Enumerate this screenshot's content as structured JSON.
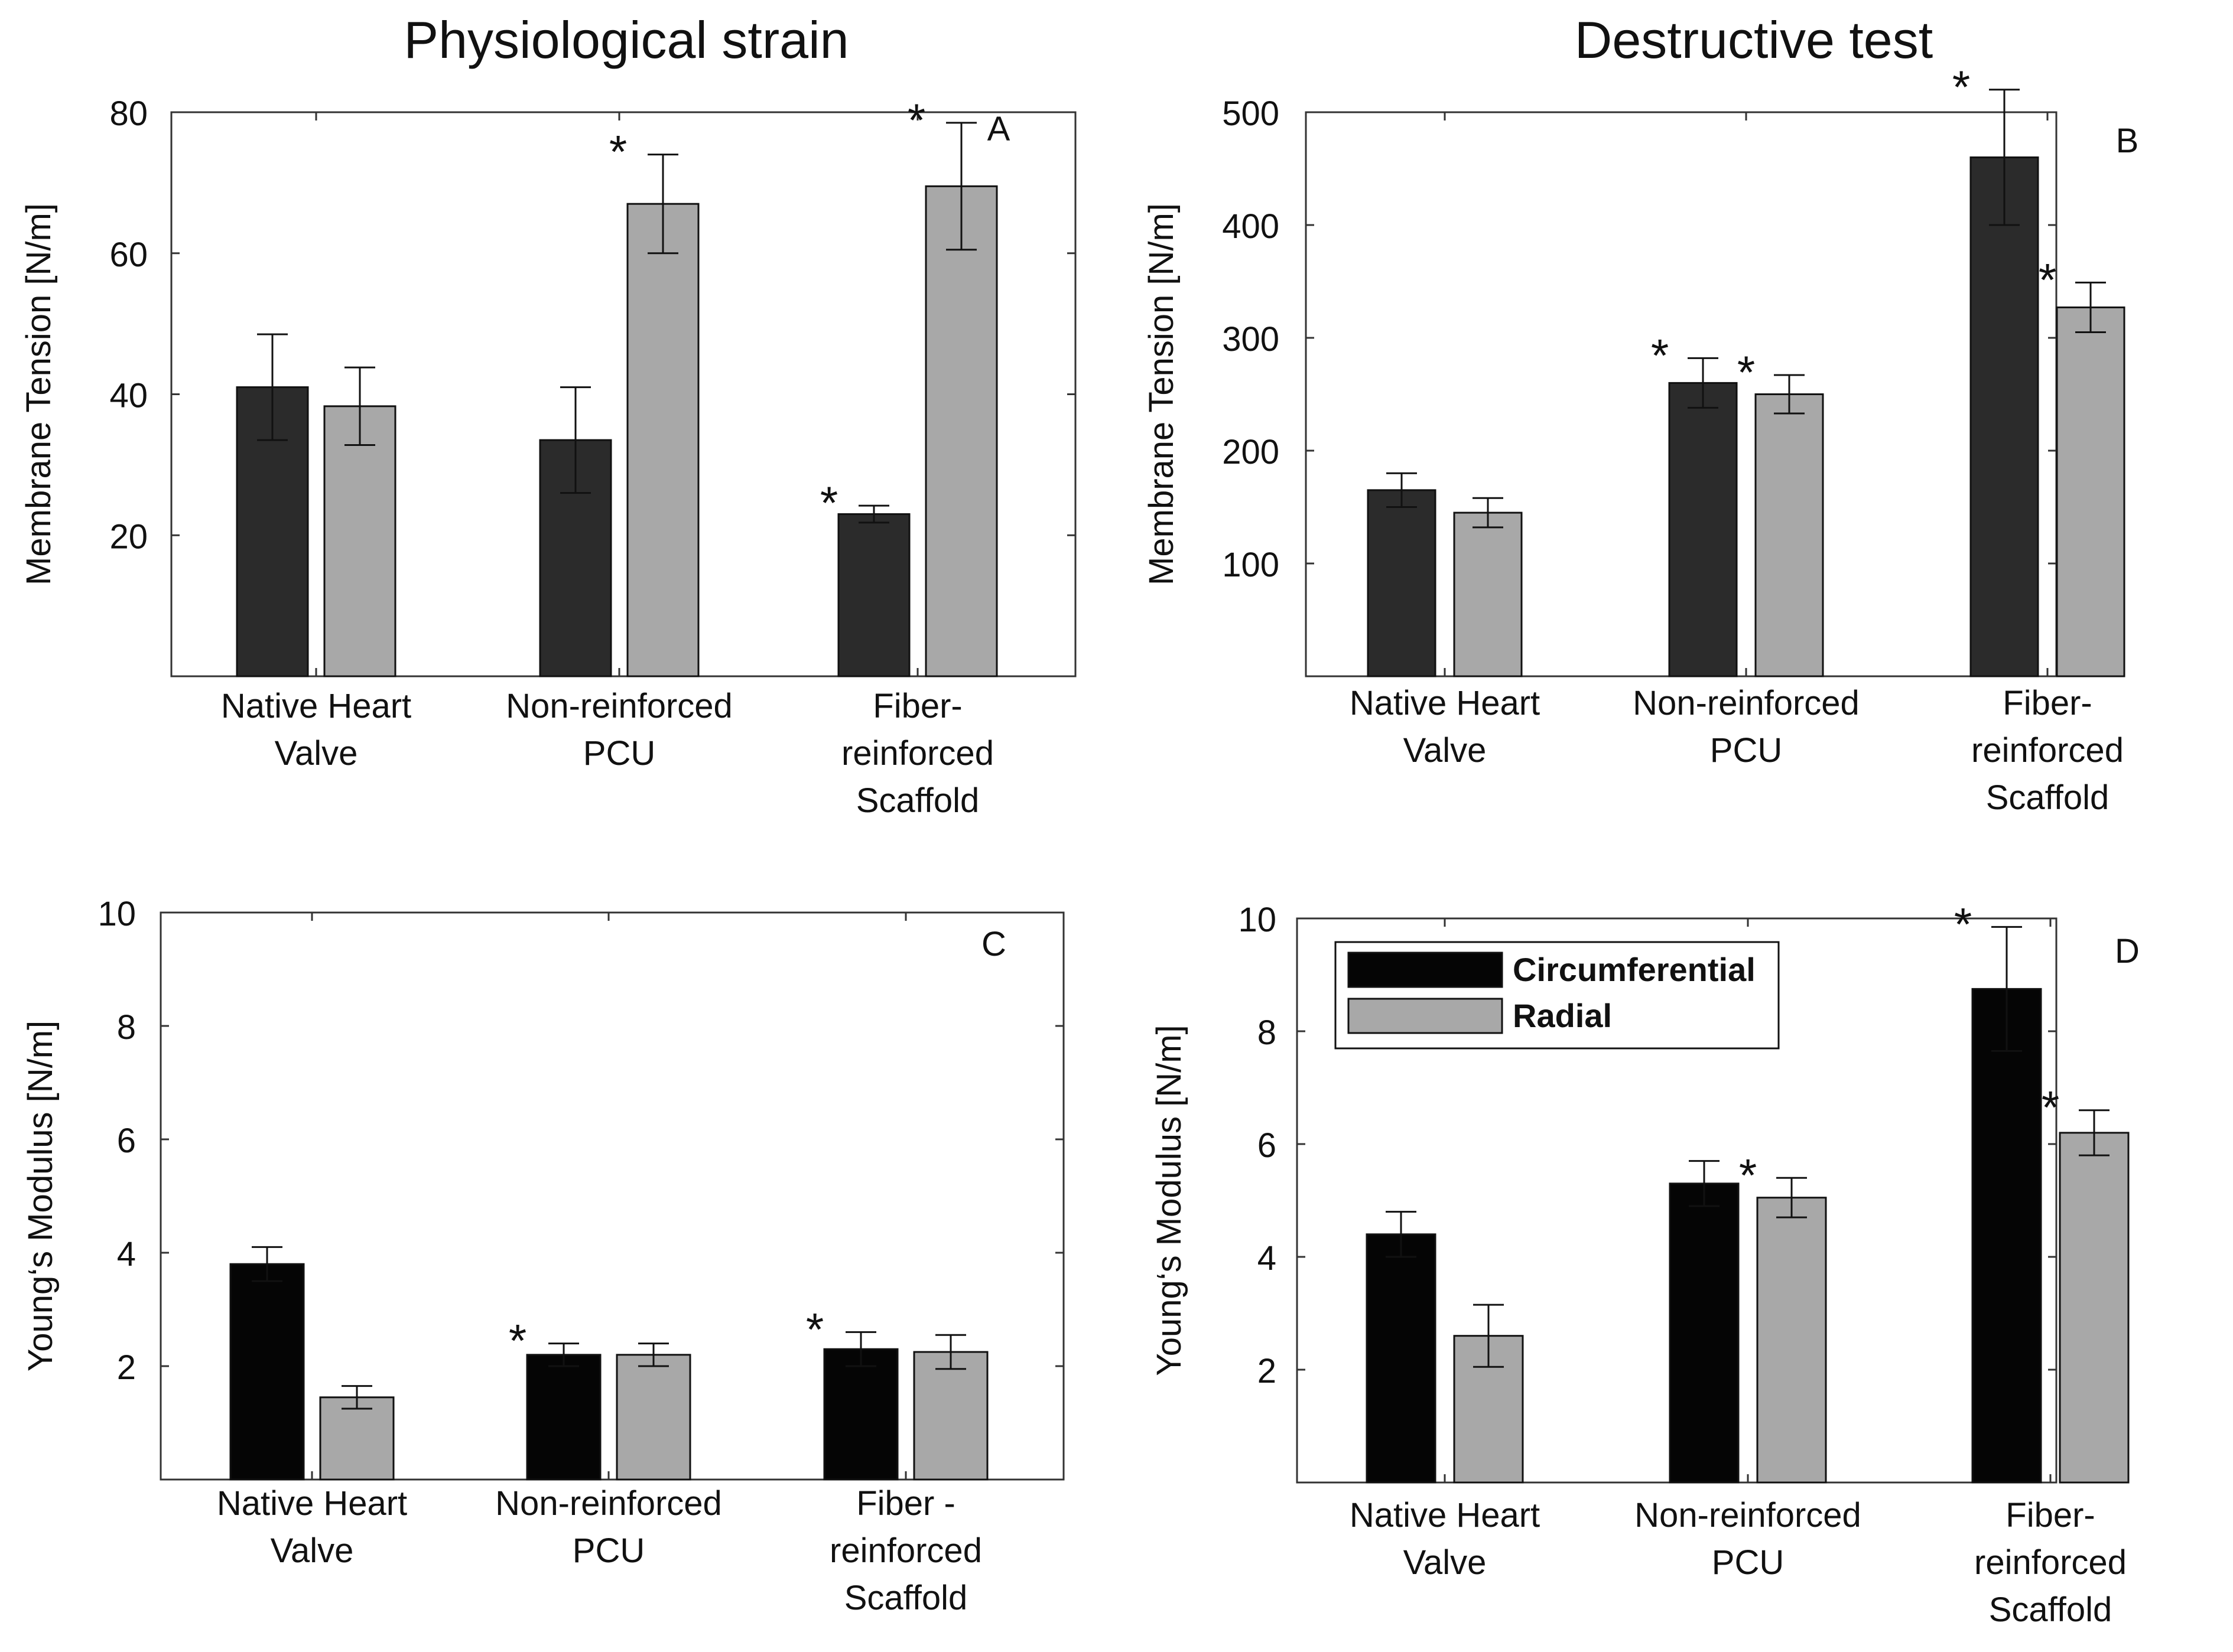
{
  "figure": {
    "column_titles": [
      "Physiological strain",
      "Destructive test"
    ]
  },
  "colors": {
    "physio_circumferential": "#2b2b2b",
    "destructive_circumferential_top": "#2b2b2b",
    "bottom_circumferential": "#050505",
    "radial": "#a8a8a8",
    "axis": "#333333"
  },
  "legend": {
    "entries": [
      {
        "name": "Circumferential",
        "color": "#050505"
      },
      {
        "name": "Radial",
        "color": "#a8a8a8"
      }
    ]
  },
  "chart_data": [
    {
      "id": "A",
      "panel_label": "A",
      "type": "bar",
      "title": "Physiological strain",
      "ylabel": "Membrane Tension [N/m]",
      "ylim": [
        0,
        80
      ],
      "yticks": [
        20,
        40,
        60,
        80
      ],
      "categories": [
        [
          "Native Heart",
          "Valve"
        ],
        [
          "Non-reinforced",
          "PCU"
        ],
        [
          "Fiber-",
          "reinforced",
          "Scaffold"
        ]
      ],
      "series": [
        {
          "name": "Circumferential",
          "values": [
            41,
            33.5,
            23
          ],
          "errors": [
            7.5,
            7.5,
            1.2
          ],
          "significant": [
            false,
            false,
            true
          ]
        },
        {
          "name": "Radial",
          "values": [
            38.3,
            67,
            69.5
          ],
          "errors": [
            5.5,
            7,
            9
          ],
          "significant": [
            false,
            true,
            true
          ]
        }
      ]
    },
    {
      "id": "B",
      "panel_label": "B",
      "type": "bar",
      "title": "Destructive test",
      "ylabel": "Membrane Tension [N/m]",
      "ylim": [
        0,
        500
      ],
      "yticks": [
        100,
        200,
        300,
        400,
        500
      ],
      "categories": [
        [
          "Native Heart",
          "Valve"
        ],
        [
          "Non-reinforced",
          "PCU"
        ],
        [
          "Fiber-",
          "reinforced",
          "Scaffold"
        ]
      ],
      "series": [
        {
          "name": "Circumferential",
          "values": [
            165,
            260,
            460
          ],
          "errors": [
            15,
            22,
            60
          ],
          "significant": [
            false,
            true,
            true
          ]
        },
        {
          "name": "Radial",
          "values": [
            145,
            250,
            327
          ],
          "errors": [
            13,
            17,
            22
          ],
          "significant": [
            false,
            true,
            true
          ]
        }
      ]
    },
    {
      "id": "C",
      "panel_label": "C",
      "type": "bar",
      "title": "",
      "ylabel": "Young‘s Modulus [N/m]",
      "ylim": [
        0,
        10
      ],
      "yticks": [
        2,
        4,
        6,
        8,
        10
      ],
      "categories": [
        [
          "Native Heart",
          "Valve"
        ],
        [
          "Non-reinforced",
          "PCU"
        ],
        [
          "Fiber -",
          "reinforced",
          "Scaffold"
        ]
      ],
      "series": [
        {
          "name": "Circumferential",
          "values": [
            3.8,
            2.2,
            2.3
          ],
          "errors": [
            0.3,
            0.2,
            0.3
          ],
          "significant": [
            false,
            true,
            true
          ]
        },
        {
          "name": "Radial",
          "values": [
            1.45,
            2.2,
            2.25
          ],
          "errors": [
            0.2,
            0.2,
            0.3
          ],
          "significant": [
            false,
            false,
            false
          ]
        }
      ]
    },
    {
      "id": "D",
      "panel_label": "D",
      "type": "bar",
      "title": "",
      "ylabel": "Young‘s Modulus [N/m]",
      "ylim": [
        0,
        10
      ],
      "yticks": [
        2,
        4,
        6,
        8,
        10
      ],
      "categories": [
        [
          "Native Heart",
          "Valve"
        ],
        [
          "Non-reinforced",
          "PCU"
        ],
        [
          "Fiber-",
          "reinforced",
          "Scaffold"
        ]
      ],
      "series": [
        {
          "name": "Circumferential",
          "values": [
            4.4,
            5.3,
            8.75
          ],
          "errors": [
            0.4,
            0.4,
            1.1
          ],
          "significant": [
            false,
            false,
            true
          ]
        },
        {
          "name": "Radial",
          "values": [
            2.6,
            5.05,
            6.2
          ],
          "errors": [
            0.55,
            0.35,
            0.4
          ],
          "significant": [
            false,
            true,
            true
          ]
        }
      ],
      "legend": "top-left"
    }
  ]
}
